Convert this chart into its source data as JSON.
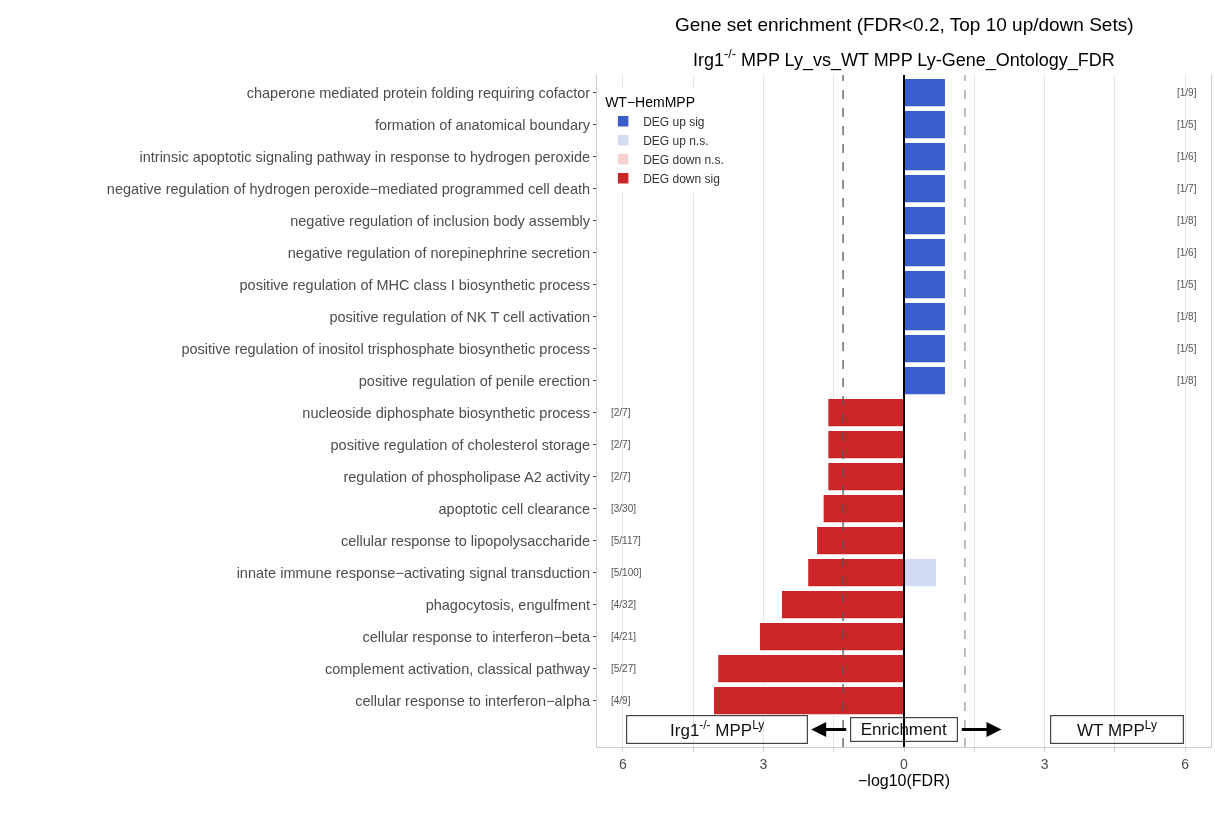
{
  "chart_data": {
    "type": "bar",
    "orientation": "horizontal",
    "stacked": true,
    "title": "Gene set enrichment (FDR<0.2, Top 10 up/down Sets)",
    "subtitle": "Irg1$^{-/-}$ MPP Ly_vs_WT MPP Ly-Gene_Ontology_FDR",
    "xlabel": "−log10(FDR)",
    "legend_title": "WT−HemMPP",
    "categories": [
      "chaperone mediated protein folding requiring cofactor",
      "formation of anatomical boundary",
      "intrinsic apoptotic signaling pathway in response to hydrogen peroxide",
      "negative regulation of hydrogen peroxide−mediated programmed cell death",
      "negative regulation of inclusion body assembly",
      "negative regulation of norepinephrine secretion",
      "positive regulation of MHC class I biosynthetic process",
      "positive regulation of NK T cell activation",
      "positive regulation of inositol trisphosphate biosynthetic process",
      "positive regulation of penile erection",
      "nucleoside diphosphate biosynthetic process",
      "positive regulation of cholesterol storage",
      "regulation of phospholipase A2 activity",
      "apoptotic cell clearance",
      "cellular response to lipopolysaccharide",
      "innate immune response−activating signal transduction",
      "phagocytosis, engulfment",
      "cellular response to interferon−beta",
      "complement activation, classical pathway",
      "cellular response to interferon−alpha"
    ],
    "series": [
      {
        "name": "DEG up sig",
        "color": "#3a5fcd",
        "values": [
          0.89,
          0.89,
          0.89,
          0.89,
          0.89,
          0.89,
          0.89,
          0.89,
          0.89,
          0.89,
          null,
          null,
          null,
          null,
          null,
          null,
          null,
          null,
          null,
          null
        ]
      },
      {
        "name": "DEG up n.s.",
        "color": "#d3dcf3",
        "values": [
          null,
          null,
          null,
          null,
          null,
          null,
          null,
          null,
          null,
          null,
          null,
          null,
          null,
          null,
          null,
          0.7,
          null,
          null,
          null,
          null
        ]
      },
      {
        "name": "DEG down n.s.",
        "color": "#f5d0d0",
        "values": [
          null,
          null,
          null,
          null,
          null,
          null,
          null,
          null,
          null,
          null,
          null,
          null,
          null,
          null,
          null,
          null,
          null,
          null,
          null,
          null
        ]
      },
      {
        "name": "DEG down sig",
        "color": "#cc2529",
        "values": [
          null,
          null,
          null,
          null,
          null,
          null,
          null,
          null,
          null,
          null,
          -1.63,
          -1.63,
          -1.63,
          -1.73,
          -1.87,
          -2.06,
          -2.62,
          -3.09,
          -3.98,
          -4.07
        ]
      }
    ],
    "xlim": [
      -6.55,
      6.55
    ],
    "xticks": [
      {
        "value": -6,
        "label": "6"
      },
      {
        "value": -4.5,
        "label": null
      },
      {
        "value": -3,
        "label": "3"
      },
      {
        "value": -1.5,
        "label": null
      },
      0,
      {
        "value": 1.5,
        "label": null
      },
      3,
      {
        "value": 4.5,
        "label": null
      },
      6
    ],
    "ref_lines": [
      {
        "axis": "x",
        "value": -1.3,
        "color": "#555555",
        "line_style": "dashed"
      },
      {
        "axis": "x",
        "value": 1.3,
        "color": "#999999",
        "line_style": "dashed"
      },
      {
        "axis": "x",
        "value": 0,
        "color": "#000000",
        "line_style": "solid"
      }
    ],
    "grid": "x",
    "legend": "top left",
    "annotations": [
      "[1/9]",
      "[1/5]",
      "[1/6]",
      "[1/7]",
      "[1/8]",
      "[1/6]",
      "[1/5]",
      "[1/8]",
      "[1/5]",
      "[1/8]",
      "[2/7]",
      "[2/7]",
      "[2/7]",
      "[3/30]",
      "[5/117]",
      "[5/100]",
      "[4/32]",
      "[4/21]",
      "[5/27]",
      "[4/9]",
      "Irg1$^{-/-}$ MPP$^{Ly}$",
      "Enrichment",
      "WT MPP$^{Ly}$"
    ]
  }
}
